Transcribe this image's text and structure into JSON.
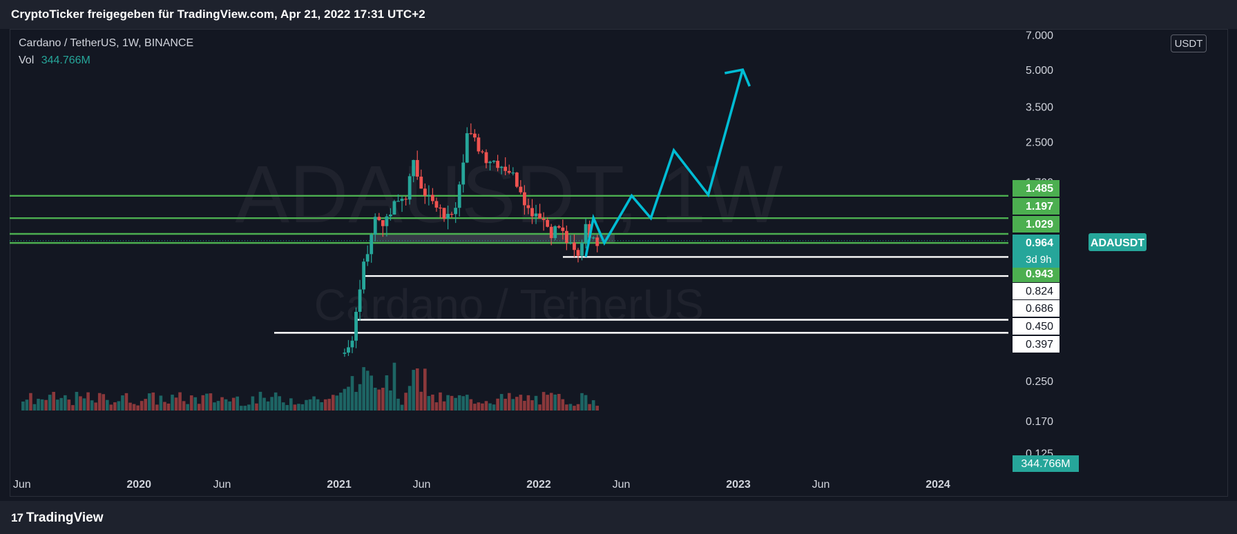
{
  "header": {
    "attribution": "CryptoTicker freigegeben für TradingView.com, Apr 21, 2022 17:31 UTC+2"
  },
  "legend": {
    "symbol_line": "Cardano / TetherUS, 1W, BINANCE",
    "vol_label": "Vol",
    "vol_value": "344.766M"
  },
  "watermark": {
    "ticker": "ADAUSDT, 1W",
    "name": "Cardano / TetherUS"
  },
  "currency_button": "USDT",
  "footer": {
    "brand": "TradingView"
  },
  "colors": {
    "background": "#131722",
    "up": "#26a69a",
    "down": "#ef5350",
    "level_green": "#4caf50",
    "level_white": "#ffffff",
    "projection": "#00bcd4",
    "symbol_tag": "#26a69a"
  },
  "chart_data": {
    "type": "candlestick",
    "symbol": "Cardano / TetherUS",
    "interval": "1W",
    "exchange": "BINANCE",
    "y_scale": "log",
    "y_unit": "USDT",
    "x_tick_labels": [
      "Jun",
      "2020",
      "Jun",
      "2021",
      "Jun",
      "2022",
      "Jun",
      "2023",
      "Jun",
      "2024"
    ],
    "x_tick_dates": [
      "2019-06-01",
      "2020-01-01",
      "2020-06-01",
      "2021-01-01",
      "2021-06-01",
      "2022-01-01",
      "2022-06-01",
      "2023-01-01",
      "2023-06-01",
      "2024-01-01"
    ],
    "y_tick_labels": [
      "7.000",
      "5.000",
      "3.500",
      "2.500",
      "1.700",
      "0.250",
      "0.170",
      "0.125"
    ],
    "y_ticks": [
      7.0,
      5.0,
      3.5,
      2.5,
      1.7,
      0.25,
      0.17,
      0.125
    ],
    "price_levels": [
      {
        "value": 1.485,
        "label": "1.485",
        "style": "green"
      },
      {
        "value": 1.197,
        "label": "1.197",
        "style": "green"
      },
      {
        "value": 1.029,
        "label": "1.029",
        "style": "green"
      },
      {
        "value": 0.943,
        "label": "0.943",
        "style": "green"
      },
      {
        "value": 0.824,
        "label": "0.824",
        "style": "white"
      },
      {
        "value": 0.686,
        "label": "0.686",
        "style": "white"
      },
      {
        "value": 0.45,
        "label": "0.450",
        "style": "white"
      },
      {
        "value": 0.397,
        "label": "0.397",
        "style": "white"
      }
    ],
    "last_price": {
      "symbol": "ADAUSDT",
      "value": 0.964,
      "label": "0.964",
      "countdown": "3d 9h"
    },
    "last_volume": {
      "value": "344.766M"
    },
    "weekly_close_path": [
      {
        "date": "2021-01-04",
        "price": 0.33
      },
      {
        "date": "2021-01-25",
        "price": 0.36
      },
      {
        "date": "2021-02-08",
        "price": 0.62
      },
      {
        "date": "2021-02-22",
        "price": 0.9
      },
      {
        "date": "2021-03-08",
        "price": 1.2
      },
      {
        "date": "2021-03-29",
        "price": 1.15
      },
      {
        "date": "2021-04-12",
        "price": 1.35
      },
      {
        "date": "2021-05-03",
        "price": 1.5
      },
      {
        "date": "2021-05-17",
        "price": 2.0
      },
      {
        "date": "2021-06-07",
        "price": 1.55
      },
      {
        "date": "2021-06-28",
        "price": 1.3
      },
      {
        "date": "2021-07-19",
        "price": 1.2
      },
      {
        "date": "2021-08-02",
        "price": 1.4
      },
      {
        "date": "2021-08-23",
        "price": 2.7
      },
      {
        "date": "2021-09-06",
        "price": 2.5
      },
      {
        "date": "2021-09-27",
        "price": 2.15
      },
      {
        "date": "2021-10-18",
        "price": 2.05
      },
      {
        "date": "2021-11-08",
        "price": 1.9
      },
      {
        "date": "2021-11-29",
        "price": 1.6
      },
      {
        "date": "2021-12-13",
        "price": 1.3
      },
      {
        "date": "2022-01-03",
        "price": 1.25
      },
      {
        "date": "2022-01-24",
        "price": 1.05
      },
      {
        "date": "2022-02-07",
        "price": 1.1
      },
      {
        "date": "2022-02-28",
        "price": 0.9
      },
      {
        "date": "2022-03-14",
        "price": 0.82
      },
      {
        "date": "2022-03-28",
        "price": 1.15
      },
      {
        "date": "2022-04-11",
        "price": 0.95
      },
      {
        "date": "2022-04-18",
        "price": 0.964
      }
    ],
    "projection_path": [
      {
        "date": "2022-03-28",
        "price": 0.824
      },
      {
        "date": "2022-04-11",
        "price": 1.2
      },
      {
        "date": "2022-05-01",
        "price": 0.943
      },
      {
        "date": "2022-06-20",
        "price": 1.485
      },
      {
        "date": "2022-07-25",
        "price": 1.197
      },
      {
        "date": "2022-09-05",
        "price": 2.3
      },
      {
        "date": "2022-11-07",
        "price": 1.5
      },
      {
        "date": "2023-01-09",
        "price": 5.0
      }
    ]
  }
}
